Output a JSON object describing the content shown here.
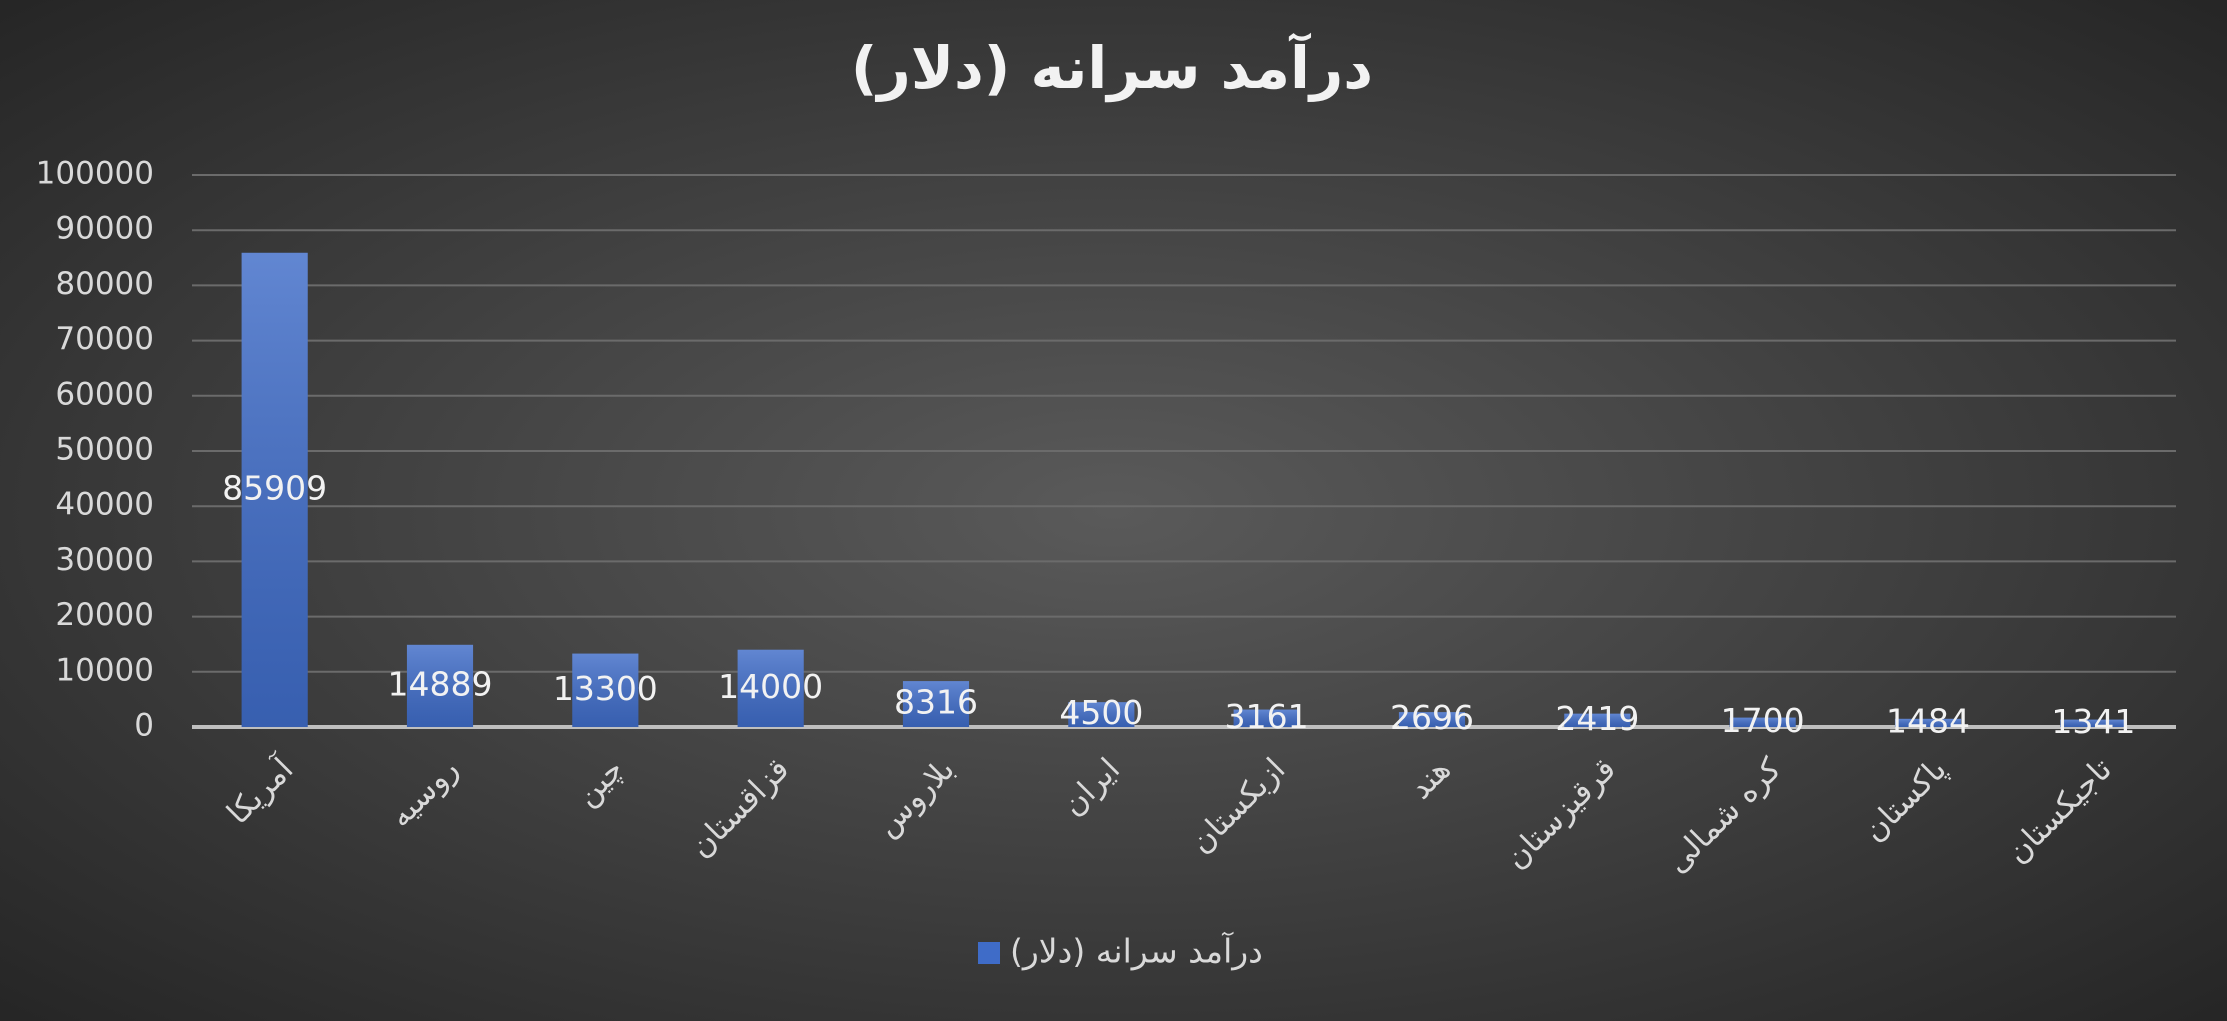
{
  "chart_data": {
    "type": "bar",
    "title": "درآمد سرانه (دلار)",
    "categories": [
      "آمریکا",
      "روسیه",
      "چین",
      "قزاقستان",
      "بلاروس",
      "ایران",
      "ازبکستان",
      "هند",
      "قرقیزستان",
      "کره شمالی",
      "پاکستان",
      "تاجیکستان"
    ],
    "series": [
      {
        "name": "درآمد سرانه (دلار)",
        "color": "#3f6cc8",
        "values": [
          85909,
          14889,
          13300,
          14000,
          8316,
          4500,
          3161,
          2696,
          2419,
          1700,
          1484,
          1341
        ]
      }
    ],
    "ylim": [
      0,
      100000
    ],
    "yticks": [
      0,
      10000,
      20000,
      30000,
      40000,
      50000,
      60000,
      70000,
      80000,
      90000,
      100000
    ],
    "grid": true,
    "legend": "bottom"
  }
}
